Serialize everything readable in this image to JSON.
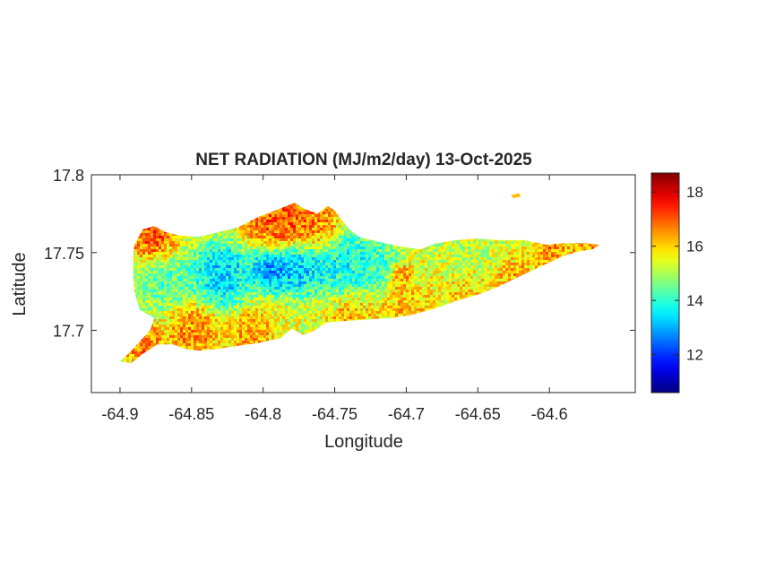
{
  "chart_data": {
    "type": "heatmap",
    "title": "NET RADIATION (MJ/m2/day) 13-Oct-2025",
    "xlabel": "Longitude",
    "ylabel": "Latitude",
    "xlim": [
      -64.92,
      -64.54
    ],
    "ylim": [
      17.66,
      17.8
    ],
    "xticks": [
      -64.9,
      -64.85,
      -64.8,
      -64.75,
      -64.7,
      -64.65,
      -64.6
    ],
    "xtick_labels": [
      "-64.9",
      "-64.85",
      "-64.8",
      "-64.75",
      "-64.7",
      "-64.65",
      "-64.6"
    ],
    "yticks": [
      17.7,
      17.75,
      17.8
    ],
    "ytick_labels": [
      "17.7",
      "17.75",
      "17.8"
    ],
    "colorbar": {
      "colormap": "jet",
      "range": [
        10.6,
        18.7
      ],
      "ticks": [
        12,
        14,
        16,
        18
      ],
      "tick_labels": [
        "12",
        "14",
        "16",
        "18"
      ]
    },
    "grid": false,
    "island_outline": [
      [
        -64.9,
        17.68
      ],
      [
        -64.893,
        17.686
      ],
      [
        -64.885,
        17.694
      ],
      [
        -64.879,
        17.7
      ],
      [
        -64.876,
        17.708
      ],
      [
        -64.886,
        17.713
      ],
      [
        -64.89,
        17.725
      ],
      [
        -64.891,
        17.74
      ],
      [
        -64.89,
        17.755
      ],
      [
        -64.884,
        17.765
      ],
      [
        -64.876,
        17.767
      ],
      [
        -64.868,
        17.763
      ],
      [
        -64.858,
        17.761
      ],
      [
        -64.845,
        17.76
      ],
      [
        -64.832,
        17.763
      ],
      [
        -64.818,
        17.766
      ],
      [
        -64.803,
        17.773
      ],
      [
        -64.789,
        17.778
      ],
      [
        -64.778,
        17.782
      ],
      [
        -64.771,
        17.778
      ],
      [
        -64.762,
        17.775
      ],
      [
        -64.755,
        17.78
      ],
      [
        -64.75,
        17.777
      ],
      [
        -64.741,
        17.766
      ],
      [
        -64.733,
        17.76
      ],
      [
        -64.72,
        17.757
      ],
      [
        -64.705,
        17.754
      ],
      [
        -64.69,
        17.752
      ],
      [
        -64.679,
        17.756
      ],
      [
        -64.665,
        17.758
      ],
      [
        -64.65,
        17.759
      ],
      [
        -64.636,
        17.758
      ],
      [
        -64.618,
        17.758
      ],
      [
        -64.602,
        17.755
      ],
      [
        -64.59,
        17.756
      ],
      [
        -64.575,
        17.756
      ],
      [
        -64.565,
        17.755
      ],
      [
        -64.57,
        17.752
      ],
      [
        -64.578,
        17.751
      ],
      [
        -64.59,
        17.748
      ],
      [
        -64.604,
        17.742
      ],
      [
        -64.62,
        17.735
      ],
      [
        -64.636,
        17.728
      ],
      [
        -64.65,
        17.723
      ],
      [
        -64.665,
        17.719
      ],
      [
        -64.68,
        17.714
      ],
      [
        -64.696,
        17.71
      ],
      [
        -64.711,
        17.708
      ],
      [
        -64.727,
        17.707
      ],
      [
        -64.744,
        17.706
      ],
      [
        -64.756,
        17.705
      ],
      [
        -64.764,
        17.7
      ],
      [
        -64.772,
        17.697
      ],
      [
        -64.78,
        17.701
      ],
      [
        -64.788,
        17.695
      ],
      [
        -64.803,
        17.692
      ],
      [
        -64.818,
        17.69
      ],
      [
        -64.833,
        17.688
      ],
      [
        -64.845,
        17.687
      ],
      [
        -64.854,
        17.688
      ],
      [
        -64.863,
        17.691
      ],
      [
        -64.874,
        17.691
      ],
      [
        -64.884,
        17.685
      ],
      [
        -64.892,
        17.679
      ]
    ],
    "islet_outline": [
      [
        -64.627,
        17.787
      ],
      [
        -64.621,
        17.788
      ],
      [
        -64.62,
        17.786
      ],
      [
        -64.625,
        17.785
      ]
    ],
    "value_anomalies": [
      {
        "lon": -64.877,
        "lat": 17.758,
        "value": 17.8,
        "radius": 0.012
      },
      {
        "lon": -64.79,
        "lat": 17.77,
        "value": 17.6,
        "radius": 0.018
      },
      {
        "lon": -64.762,
        "lat": 17.768,
        "value": 17.2,
        "radius": 0.013
      },
      {
        "lon": -64.885,
        "lat": 17.692,
        "value": 17.3,
        "radius": 0.01
      },
      {
        "lon": -64.85,
        "lat": 17.7,
        "value": 17.0,
        "radius": 0.014
      },
      {
        "lon": -64.81,
        "lat": 17.698,
        "value": 16.8,
        "radius": 0.012
      },
      {
        "lon": -64.74,
        "lat": 17.708,
        "value": 16.5,
        "radius": 0.012
      },
      {
        "lon": -64.7,
        "lat": 17.715,
        "value": 16.3,
        "radius": 0.014
      },
      {
        "lon": -64.655,
        "lat": 17.727,
        "value": 16.4,
        "radius": 0.014
      },
      {
        "lon": -64.625,
        "lat": 17.735,
        "value": 16.6,
        "radius": 0.01
      },
      {
        "lon": -64.6,
        "lat": 17.752,
        "value": 17.0,
        "radius": 0.01
      },
      {
        "lon": -64.575,
        "lat": 17.754,
        "value": 16.8,
        "radius": 0.008
      },
      {
        "lon": -64.705,
        "lat": 17.736,
        "value": 17.2,
        "radius": 0.006
      },
      {
        "lon": -64.83,
        "lat": 17.737,
        "value": 12.6,
        "radius": 0.016
      },
      {
        "lon": -64.795,
        "lat": 17.742,
        "value": 11.9,
        "radius": 0.012
      },
      {
        "lon": -64.775,
        "lat": 17.741,
        "value": 12.4,
        "radius": 0.013
      },
      {
        "lon": -64.745,
        "lat": 17.745,
        "value": 13.2,
        "radius": 0.018
      },
      {
        "lon": -64.87,
        "lat": 17.734,
        "value": 14.0,
        "radius": 0.016
      },
      {
        "lon": -64.72,
        "lat": 17.744,
        "value": 13.9,
        "radius": 0.012
      },
      {
        "lon": -64.655,
        "lat": 17.744,
        "value": 14.9,
        "radius": 0.014
      }
    ],
    "background_value": 15.4
  }
}
